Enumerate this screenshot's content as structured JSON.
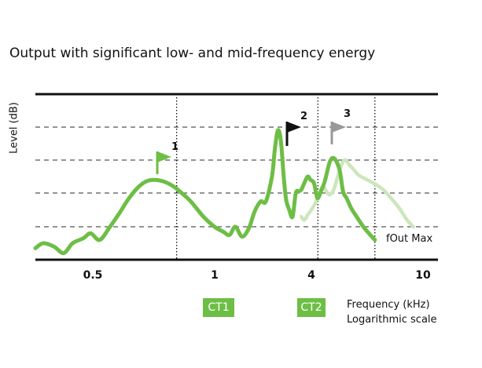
{
  "title": "Output with significant low- and mid-frequency energy",
  "ylabel": "Level (dB)",
  "xlabel": "Frequency (kHz)",
  "xscale_note": "Logarithmic scale",
  "fout_label": "fOut Max",
  "ct_markers": [
    {
      "label": "CT1",
      "freq": 1
    },
    {
      "label": "CT2",
      "freq": 4
    }
  ],
  "peaks": [
    {
      "number": "1",
      "flag_color": "#6dbe45"
    },
    {
      "number": "2",
      "flag_color": "#111111"
    },
    {
      "number": "3",
      "flag_color": "#999999"
    }
  ],
  "colors": {
    "curve": "#6dbe45",
    "curve_faded": "#cde6bd",
    "axis": "#111111",
    "grid": "#555555"
  },
  "chart_data": {
    "type": "line",
    "x_scale": "log",
    "x_ticks": [
      0.5,
      1,
      4,
      10
    ],
    "x_tick_labels": [
      "0.5",
      "1",
      "4",
      "10"
    ],
    "xlim": [
      0.25,
      13
    ],
    "ylim": [
      0,
      5
    ],
    "gridlines_y": [
      1,
      2,
      3,
      4
    ],
    "vertical_dotted_x": [
      1,
      4,
      7
    ],
    "series": [
      {
        "style": "solid",
        "x": [
          0.25,
          0.27,
          0.3,
          0.33,
          0.36,
          0.4,
          0.43,
          0.47,
          0.52,
          0.57,
          0.62,
          0.68,
          0.74,
          0.8,
          0.88,
          0.97,
          1.05,
          1.15,
          1.3,
          1.45,
          1.58,
          1.68,
          1.78,
          1.9,
          2.03,
          2.15,
          2.28,
          2.4,
          2.55,
          2.62,
          2.7,
          2.78,
          2.86,
          2.93,
          3.02,
          3.12,
          3.22,
          3.32,
          3.4,
          3.5,
          3.62,
          3.72,
          3.85,
          3.98,
          4.12,
          4.28,
          4.5,
          4.7,
          4.95,
          5.12,
          5.3,
          5.55,
          5.85,
          6.25,
          6.6,
          7.0
        ],
        "y": [
          0.35,
          0.5,
          0.4,
          0.2,
          0.5,
          0.65,
          0.8,
          0.6,
          1.0,
          1.4,
          1.8,
          2.15,
          2.35,
          2.4,
          2.35,
          2.2,
          2.0,
          1.75,
          1.3,
          1.0,
          0.85,
          0.75,
          1.0,
          0.7,
          0.95,
          1.45,
          1.75,
          1.75,
          2.5,
          3.3,
          3.9,
          3.6,
          2.5,
          1.8,
          1.5,
          1.3,
          2.0,
          2.05,
          2.1,
          2.3,
          2.5,
          2.4,
          2.3,
          1.85,
          2.05,
          2.35,
          2.95,
          3.05,
          2.7,
          2.05,
          1.85,
          1.55,
          1.3,
          1.0,
          0.8,
          0.6
        ]
      },
      {
        "style": "faded",
        "x": [
          3.4,
          3.5,
          3.62,
          3.75,
          3.9,
          4.05,
          4.2,
          4.35,
          4.5,
          4.7,
          4.95,
          5.2,
          5.45,
          5.7,
          5.95,
          6.3,
          6.7,
          7.1,
          7.6,
          8.2,
          8.9,
          9.6,
          10.2
        ],
        "y": [
          1.3,
          1.2,
          1.35,
          1.5,
          1.7,
          2.0,
          2.2,
          2.05,
          1.95,
          2.15,
          2.7,
          3.0,
          2.85,
          2.7,
          2.55,
          2.45,
          2.35,
          2.25,
          2.1,
          1.85,
          1.55,
          1.2,
          1.0
        ]
      }
    ]
  }
}
